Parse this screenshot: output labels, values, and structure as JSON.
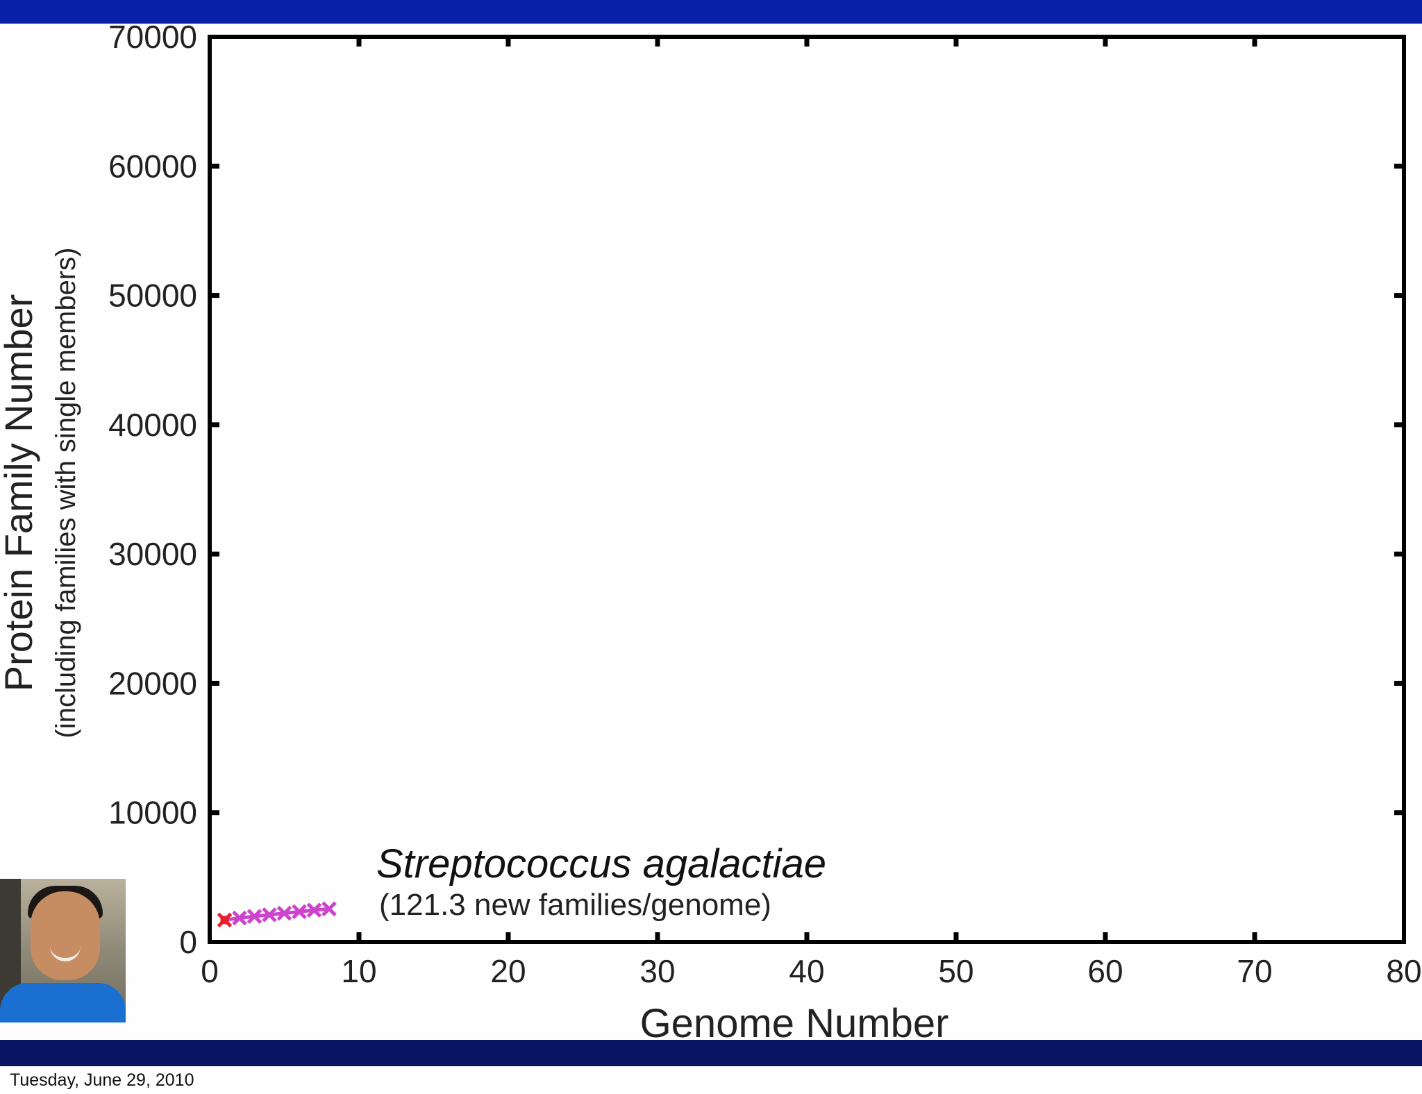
{
  "footer": {
    "date": "Tuesday, June 29, 2010"
  },
  "colors": {
    "top_bar": "#0a20a8",
    "bottom_bar": "#071563",
    "series_line": "#cc44cc",
    "first_point": "#e8202a",
    "axis": "#000000"
  },
  "webcam": {
    "label": "presenter-video"
  },
  "chart_data": {
    "type": "line",
    "xlabel": "Genome Number",
    "ylabel": "Protein Family Number",
    "ylabel_sub": "(including families with single members)",
    "xlim": [
      0,
      80
    ],
    "ylim": [
      0,
      70000
    ],
    "xticks": [
      "0",
      "10",
      "20",
      "30",
      "40",
      "50",
      "60",
      "70",
      "80"
    ],
    "yticks": [
      "0",
      "10000",
      "20000",
      "30000",
      "40000",
      "50000",
      "60000",
      "70000"
    ],
    "annotation": {
      "title": "Streptococcus agalactiae",
      "subtitle": "(121.3 new families/genome)"
    },
    "grid": false,
    "series": [
      {
        "x": [
          1,
          2,
          3,
          4,
          5,
          6,
          7,
          8
        ],
        "y": [
          1700,
          1850,
          1980,
          2100,
          2220,
          2340,
          2460,
          2560
        ]
      }
    ]
  }
}
